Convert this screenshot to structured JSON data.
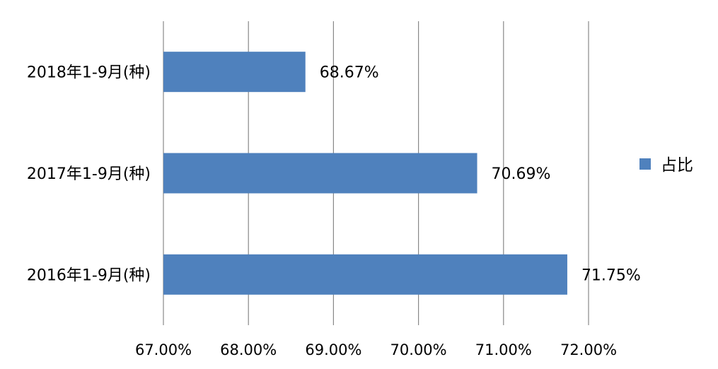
{
  "chart_data": {
    "type": "bar",
    "orientation": "horizontal",
    "categories": [
      "2018年1-9月(种)",
      "2017年1-9月(种)",
      "2016年1-9月(种)"
    ],
    "series": [
      {
        "name": "占比",
        "values": [
          68.67,
          70.69,
          71.75
        ],
        "data_labels": [
          "68.67%",
          "70.69%",
          "71.75%"
        ],
        "color": "#4F81BD"
      }
    ],
    "xlim": [
      67,
      72
    ],
    "x_ticks": [
      67,
      68,
      69,
      70,
      71,
      72
    ],
    "x_tick_labels": [
      "67.00%",
      "68.00%",
      "69.00%",
      "70.00%",
      "71.00%",
      "72.00%"
    ],
    "grid": "vertical",
    "legend": {
      "position": "right",
      "entries": [
        "占比"
      ]
    },
    "title": "",
    "xlabel": "",
    "ylabel": ""
  }
}
